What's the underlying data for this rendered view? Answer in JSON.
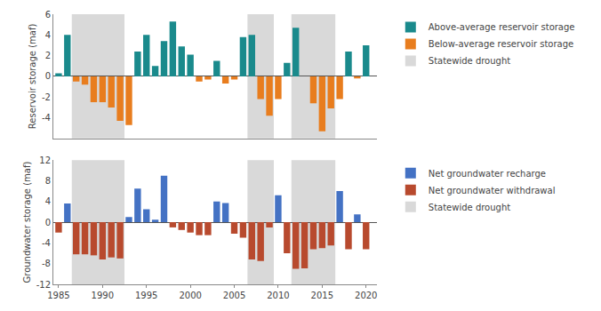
{
  "chart_data": [
    {
      "type": "bar",
      "ylabel": "Reservoir storage (maf)",
      "x": [
        1985,
        1986,
        1987,
        1988,
        1989,
        1990,
        1991,
        1992,
        1993,
        1994,
        1995,
        1996,
        1997,
        1998,
        1999,
        2000,
        2001,
        2002,
        2003,
        2004,
        2005,
        2006,
        2007,
        2008,
        2009,
        2010,
        2011,
        2012,
        2013,
        2014,
        2015,
        2016,
        2017,
        2018,
        2019,
        2020
      ],
      "series": [
        {
          "name": "Above-average reservoir storage",
          "color": "#1a8a8c",
          "values": [
            0.3,
            4.0,
            null,
            null,
            null,
            null,
            null,
            null,
            null,
            2.4,
            4.0,
            1.0,
            3.4,
            5.3,
            2.9,
            2.1,
            null,
            null,
            1.5,
            null,
            null,
            3.8,
            4.0,
            null,
            null,
            null,
            1.3,
            4.7,
            0.0,
            null,
            null,
            null,
            null,
            2.4,
            null,
            3.0
          ]
        },
        {
          "name": "Below-average reservoir storage",
          "color": "#e87d1e",
          "values": [
            null,
            null,
            -0.5,
            -0.8,
            -2.5,
            -2.5,
            -3.0,
            -4.3,
            -4.7,
            null,
            null,
            null,
            null,
            null,
            null,
            null,
            -0.5,
            -0.3,
            null,
            -0.7,
            -0.3,
            null,
            null,
            -2.2,
            -3.8,
            -2.2,
            null,
            null,
            null,
            -2.6,
            -5.3,
            -3.1,
            -2.2,
            null,
            -0.2,
            null
          ]
        }
      ],
      "drought_periods": {
        "name": "Statewide drought",
        "color": "#d9d9d9",
        "spans": [
          [
            1986.5,
            1992.5
          ],
          [
            2006.5,
            2009.5
          ],
          [
            2011.5,
            2016.5
          ]
        ]
      },
      "xlim": [
        1984.4,
        2021.2
      ],
      "xticks": [
        1985,
        1990,
        1995,
        2000,
        2005,
        2010,
        2015,
        2020
      ],
      "ylim": [
        -6,
        6
      ],
      "yticks": [
        -4,
        -2,
        0,
        2,
        4,
        6
      ],
      "tick_labels": "y",
      "grid": false
    },
    {
      "type": "bar",
      "ylabel": "Groundwater storage (maf)",
      "x": [
        1985,
        1986,
        1987,
        1988,
        1989,
        1990,
        1991,
        1992,
        1993,
        1994,
        1995,
        1996,
        1997,
        1998,
        1999,
        2000,
        2001,
        2002,
        2003,
        2004,
        2005,
        2006,
        2007,
        2008,
        2009,
        2010,
        2011,
        2012,
        2013,
        2014,
        2015,
        2016,
        2017,
        2018,
        2019,
        2020
      ],
      "series": [
        {
          "name": "Net groundwater recharge",
          "color": "#4472c4",
          "values": [
            null,
            3.6,
            null,
            null,
            null,
            null,
            null,
            null,
            1.0,
            6.5,
            2.5,
            0.5,
            9.0,
            null,
            null,
            null,
            null,
            null,
            4.0,
            3.7,
            null,
            null,
            null,
            null,
            null,
            5.2,
            null,
            null,
            null,
            null,
            null,
            null,
            6.0,
            null,
            1.5,
            null
          ]
        },
        {
          "name": "Net groundwater withdrawal",
          "color": "#b84a2e",
          "values": [
            -2.0,
            null,
            -6.2,
            -6.2,
            -6.4,
            -7.2,
            -6.8,
            -7.0,
            null,
            null,
            null,
            null,
            null,
            -1.0,
            -1.5,
            -2.0,
            -2.5,
            -2.5,
            null,
            null,
            -2.2,
            -3.0,
            -7.2,
            -7.5,
            -1.0,
            null,
            -6.0,
            -9.0,
            -8.9,
            -5.2,
            -5.0,
            -4.5,
            null,
            -5.2,
            null,
            -5.2
          ]
        }
      ],
      "drought_periods": {
        "name": "Statewide drought",
        "color": "#d9d9d9",
        "spans": [
          [
            1986.5,
            1992.5
          ],
          [
            2006.5,
            2009.5
          ],
          [
            2011.5,
            2016.5
          ]
        ]
      },
      "xlim": [
        1984.4,
        2021.2
      ],
      "xticks": [
        1985,
        1990,
        1995,
        2000,
        2005,
        2010,
        2015,
        2020
      ],
      "ylim": [
        -12,
        12
      ],
      "yticks": [
        -12,
        -8,
        -4,
        0,
        4,
        8,
        12
      ],
      "grid": false
    }
  ]
}
